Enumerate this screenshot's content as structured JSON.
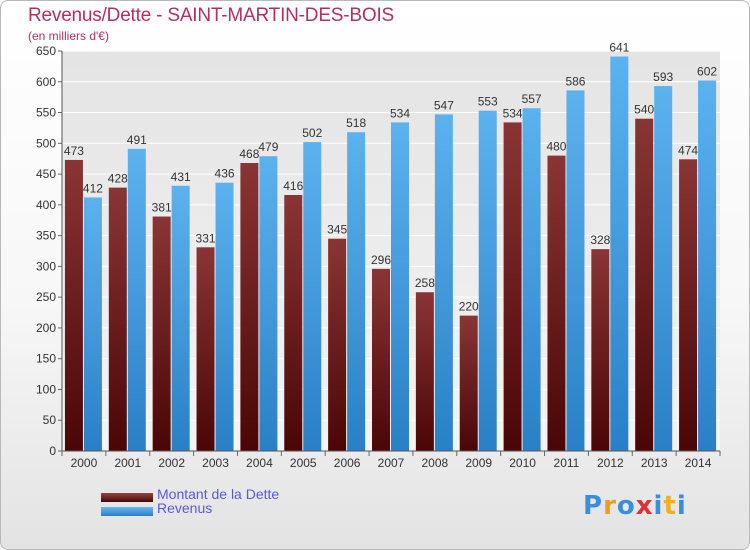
{
  "title": "Revenus/Dette - SAINT-MARTIN-DES-BOIS",
  "subtitle": "(en milliers d'€)",
  "colors": {
    "dette": "#7a2020",
    "revenus": "#4aa3e6",
    "title": "#b03060",
    "legend_text": "#5a5ad8"
  },
  "logo": {
    "text": "Proxiti",
    "letters": [
      "P",
      "r",
      "o",
      "x",
      "i",
      "t",
      "i"
    ]
  },
  "chart_data": {
    "type": "bar",
    "categories": [
      "2000",
      "2001",
      "2002",
      "2003",
      "2004",
      "2005",
      "2006",
      "2007",
      "2008",
      "2009",
      "2010",
      "2011",
      "2012",
      "2013",
      "2014"
    ],
    "series": [
      {
        "name": "Montant de la Dette",
        "values": [
          473,
          428,
          381,
          331,
          468,
          416,
          345,
          296,
          258,
          220,
          534,
          480,
          328,
          540,
          474
        ]
      },
      {
        "name": "Revenus",
        "values": [
          412,
          491,
          431,
          436,
          479,
          502,
          518,
          534,
          547,
          553,
          557,
          586,
          641,
          593,
          602
        ]
      }
    ],
    "ylim": [
      0,
      650
    ],
    "yticks": [
      0,
      50,
      100,
      150,
      200,
      250,
      300,
      350,
      400,
      450,
      500,
      550,
      600,
      650
    ],
    "grid": true,
    "legend": "bottom-left"
  }
}
